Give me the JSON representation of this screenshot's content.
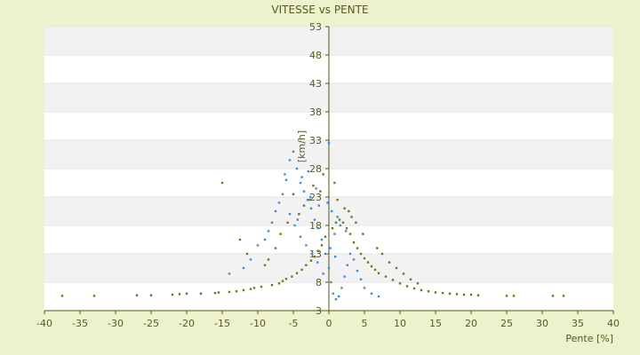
{
  "chart_data": {
    "type": "scatter",
    "title": "VITESSE vs PENTE",
    "xlabel": "Pente [%]",
    "ylabel": "[km/h]",
    "xlim": [
      -40,
      40
    ],
    "ylim": [
      3,
      53
    ],
    "x_ticks": [
      -40,
      -35,
      -30,
      -25,
      -20,
      -15,
      -10,
      -5,
      0,
      5,
      10,
      15,
      20,
      25,
      30,
      35,
      40
    ],
    "y_ticks": [
      3,
      8,
      13,
      18,
      23,
      28,
      33,
      38,
      43,
      48,
      53
    ],
    "grid": "alternating horizontal bands",
    "legend": "none",
    "colors": {
      "background": "#eef2cc",
      "plot_band_light": "#ffffff",
      "plot_band_dark": "#f2f2f2",
      "axis": "#4e5a14",
      "text": "#555a1e",
      "series_olive": "#6b7a1a",
      "series_blue": "#3a8fe0"
    },
    "series": [
      {
        "color": "#6b7a1a",
        "x": [
          -37.5,
          -33,
          -27,
          -25,
          -22,
          -21,
          -20,
          -18,
          -16,
          -15.5,
          -14,
          -13,
          -12,
          -11,
          -10.5,
          -9.5,
          -8,
          -7,
          -6.5,
          -6,
          -5.2,
          -4.5,
          -3.8,
          -3.2,
          -2.5,
          -2.0,
          -1.5,
          -1.0,
          -0.5,
          0.5,
          1.0,
          1.5,
          2.0,
          2.5,
          3.0,
          3.5,
          4.0,
          4.5,
          5.0,
          5.5,
          6.0,
          6.5,
          7.0,
          8.0,
          9.0,
          10.0,
          11.0,
          12.0,
          13.0,
          14.0,
          15.0,
          16.0,
          17.0,
          18.0,
          19.0,
          20.0,
          21.0,
          25.0,
          26.0,
          31.5,
          33.0,
          -8.5,
          -7.5,
          -6.8,
          -5.8,
          -4.2,
          -3.5,
          -2.8,
          -1.2,
          1.2,
          2.8,
          3.8,
          4.8,
          6.8,
          7.5,
          8.5,
          9.5,
          10.5,
          11.5,
          12.5,
          -15,
          -12.5,
          -11.5,
          -9,
          -5,
          -2.2,
          -0.8,
          0.8,
          2.2,
          3.2
        ],
        "y": [
          5.6,
          5.6,
          5.7,
          5.7,
          5.8,
          5.9,
          6.0,
          6.0,
          6.1,
          6.2,
          6.3,
          6.4,
          6.6,
          6.8,
          7.0,
          7.2,
          7.5,
          7.8,
          8.2,
          8.6,
          9.0,
          9.6,
          10.2,
          11.0,
          11.8,
          12.5,
          13.5,
          14.5,
          16.0,
          17.5,
          18.5,
          19.0,
          18.5,
          17.5,
          16.5,
          15.0,
          14.0,
          13.0,
          12.2,
          11.5,
          10.8,
          10.2,
          9.6,
          9.0,
          8.4,
          7.8,
          7.3,
          6.9,
          6.6,
          6.4,
          6.2,
          6.1,
          6.0,
          5.9,
          5.8,
          5.8,
          5.7,
          5.6,
          5.6,
          5.6,
          5.6,
          12.0,
          14.0,
          16.5,
          18.5,
          20.0,
          21.5,
          22.5,
          24.0,
          22.5,
          20.5,
          18.5,
          16.5,
          14.0,
          13.0,
          11.5,
          10.5,
          9.5,
          8.5,
          7.8,
          25.5,
          15.5,
          13.0,
          11.0,
          23.5,
          25.0,
          27.0,
          25.5,
          21.0,
          19.5
        ]
      },
      {
        "color": "#3a8fe0",
        "x": [
          -14,
          -12,
          -11,
          -10,
          -9,
          -8.5,
          -8,
          -7.5,
          -7,
          -6.5,
          -6,
          -5.5,
          -5,
          -4.5,
          -4,
          -3.5,
          -3,
          -2.5,
          -2,
          -1.5,
          -1,
          -0.5,
          0,
          0.3,
          0.6,
          1.0,
          1.4,
          1.8,
          2.2,
          2.6,
          3.0,
          3.5,
          4.0,
          4.5,
          5.0,
          6.0,
          7.0,
          -5.5,
          -4.8,
          -4.0,
          -3.2,
          -2.4,
          -1.6,
          -0.8,
          0.2,
          0.8,
          1.6,
          -6.2,
          -3.8,
          -1.8,
          -0.2,
          0.4,
          1.2,
          2.4,
          -2.6,
          -1.4,
          0.0,
          0.9,
          -4.4,
          -2.9
        ],
        "y": [
          9.5,
          10.5,
          12.0,
          14.5,
          15.5,
          17.0,
          18.5,
          20.5,
          22.0,
          23.5,
          26.0,
          29.5,
          31.0,
          28.0,
          25.5,
          24.0,
          22.5,
          21.0,
          19.0,
          17.5,
          15.5,
          13.0,
          10.5,
          8.0,
          6.0,
          5.0,
          5.5,
          7.0,
          9.0,
          11.0,
          13.0,
          12.0,
          10.0,
          8.5,
          7.0,
          6.0,
          5.5,
          20.0,
          18.0,
          16.0,
          14.5,
          13.0,
          11.5,
          9.5,
          14.0,
          16.5,
          18.0,
          27.0,
          26.5,
          24.5,
          22.0,
          20.5,
          19.5,
          17.0,
          23.0,
          21.5,
          32.5,
          12.5,
          19.0,
          27.5
        ]
      }
    ]
  }
}
